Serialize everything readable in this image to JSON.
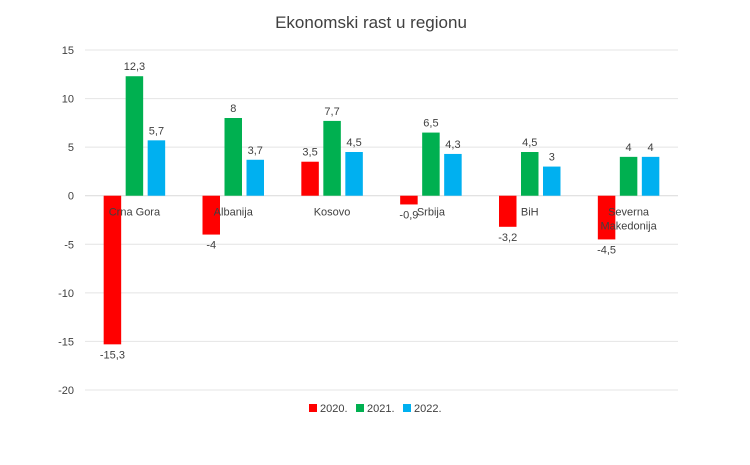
{
  "chart_data": {
    "type": "bar",
    "title": "Ekonomski rast u regionu",
    "categories": [
      [
        "Crna Gora"
      ],
      [
        "Albanija"
      ],
      [
        "Kosovo"
      ],
      [
        "Srbija"
      ],
      [
        "BiH"
      ],
      [
        "Severna",
        "Makedonija"
      ]
    ],
    "series": [
      {
        "name": "2020.",
        "color": "#ff0000",
        "values": [
          -15.3,
          -4,
          3.5,
          -0.9,
          -3.2,
          -4.5
        ],
        "labels": [
          "-15,3",
          "-4",
          "3,5",
          "-0,9",
          "-3,2",
          "-4,5"
        ]
      },
      {
        "name": "2021.",
        "color": "#00b050",
        "values": [
          12.3,
          8,
          7.7,
          6.5,
          4.5,
          4
        ],
        "labels": [
          "12,3",
          "8",
          "7,7",
          "6,5",
          "4,5",
          "4"
        ]
      },
      {
        "name": "2022.",
        "color": "#00b0f0",
        "values": [
          5.7,
          3.7,
          4.5,
          4.3,
          3,
          4
        ],
        "labels": [
          "5,7",
          "3,7",
          "4,5",
          "4,3",
          "3",
          "4"
        ]
      }
    ],
    "ylim": [
      -20,
      15
    ],
    "yticks": [
      15,
      10,
      5,
      0,
      -5,
      -10,
      -15,
      -20
    ],
    "grid": true,
    "legend": "bottom",
    "xlabel": "",
    "ylabel": ""
  }
}
